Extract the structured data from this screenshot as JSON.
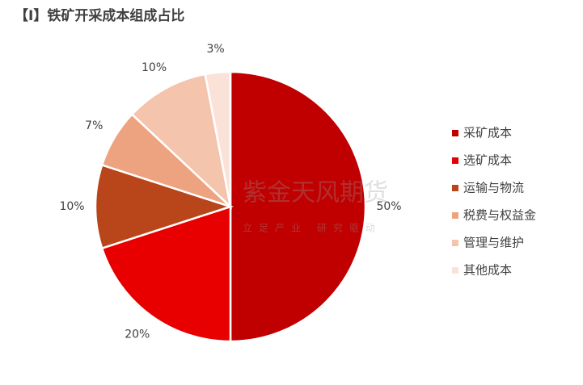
{
  "chart_data": {
    "type": "pie",
    "title": "【I】铁矿开采成本组成占比",
    "categories": [
      "采矿成本",
      "选矿成本",
      "运输与物流",
      "税费与权益金",
      "管理与维护",
      "其他成本"
    ],
    "values": [
      50,
      20,
      10,
      7,
      10,
      3
    ],
    "value_labels": [
      "50%",
      "20%",
      "10%",
      "7%",
      "10%",
      "3%"
    ],
    "colors": [
      "#c00000",
      "#e80000",
      "#b8461a",
      "#eea380",
      "#f5c4ac",
      "#fbe2d8"
    ],
    "legend": "right",
    "watermark": {
      "name": "紫金天风期货",
      "slogan": "立足产业 研究驱动"
    }
  }
}
